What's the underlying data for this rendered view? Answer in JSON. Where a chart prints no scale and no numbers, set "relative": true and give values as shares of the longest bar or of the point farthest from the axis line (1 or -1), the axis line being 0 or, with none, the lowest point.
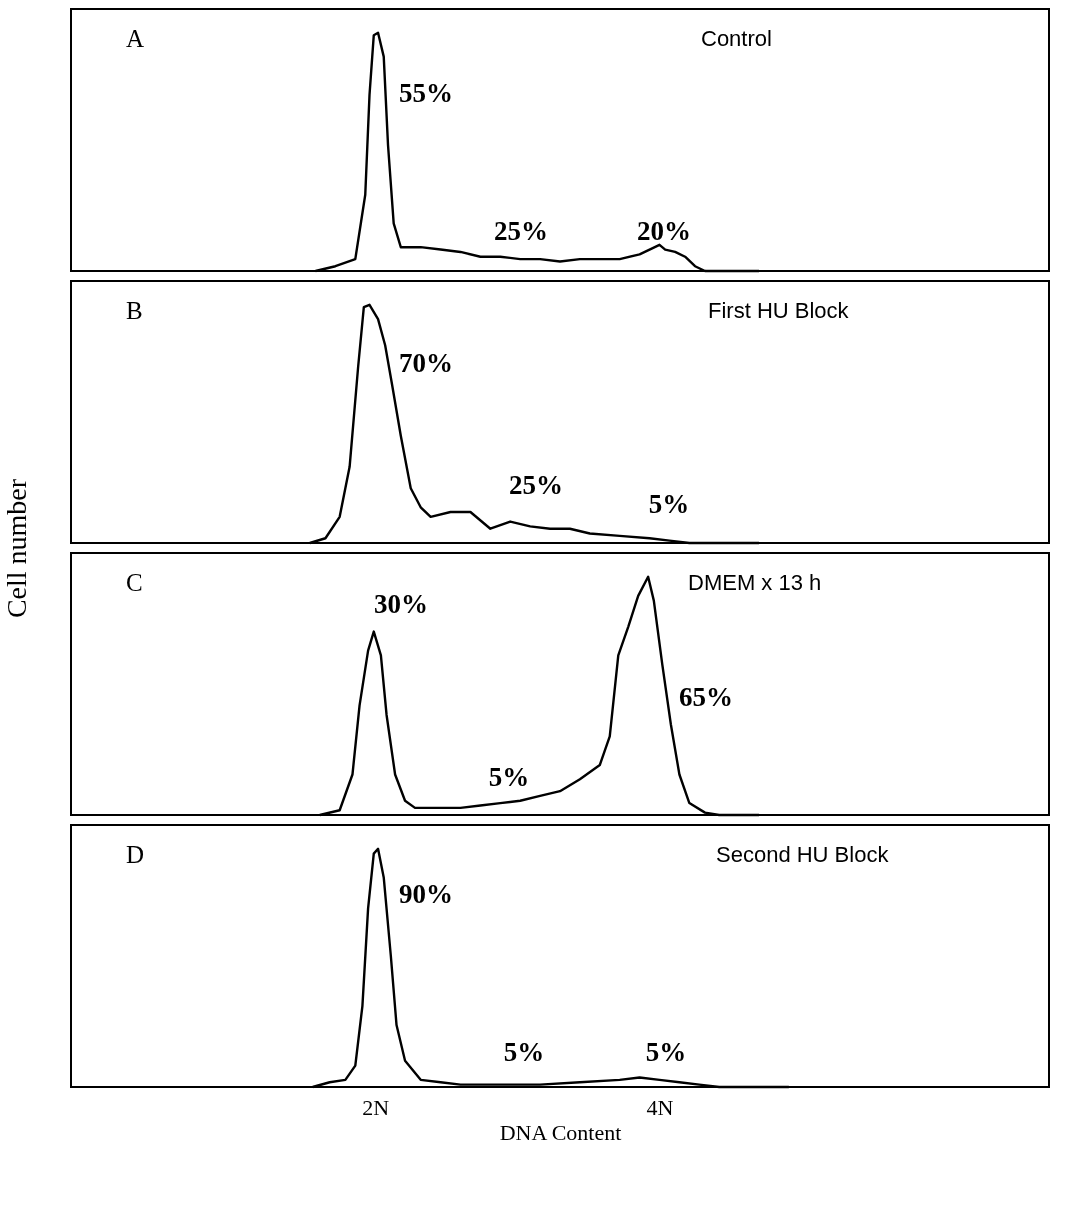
{
  "chart_data": [
    {
      "type": "line",
      "relative": true,
      "xlim": [
        -0.14,
        6.74
      ],
      "tick_labels": false,
      "grid": false,
      "x": [
        1.58,
        1.72,
        1.86,
        1.93,
        1.96,
        1.99,
        2.02,
        2.06,
        2.09,
        2.13,
        2.18,
        2.32,
        2.46,
        2.6,
        2.74,
        2.88,
        3.02,
        3.16,
        3.3,
        3.44,
        3.58,
        3.72,
        3.86,
        3.93,
        4.0,
        4.04,
        4.11,
        4.18,
        4.25,
        4.32,
        4.7
      ],
      "series": [
        {
          "color": "#000000",
          "values": [
            0,
            0.02,
            0.05,
            0.32,
            0.74,
            0.99,
            1,
            0.9,
            0.53,
            0.2,
            0.1,
            0.1,
            0.09,
            0.08,
            0.06,
            0.06,
            0.05,
            0.05,
            0.04,
            0.05,
            0.05,
            0.05,
            0.07,
            0.09,
            0.11,
            0.09,
            0.08,
            0.06,
            0.02,
            0,
            0
          ]
        }
      ],
      "annotations": [
        "A",
        "Control",
        "55%",
        "25%",
        "20%"
      ]
    },
    {
      "type": "line",
      "relative": true,
      "xlim": [
        -0.14,
        6.74
      ],
      "tick_labels": false,
      "grid": false,
      "ylabel": "Cell number",
      "x": [
        1.54,
        1.65,
        1.75,
        1.82,
        1.88,
        1.92,
        1.96,
        2.02,
        2.07,
        2.12,
        2.18,
        2.25,
        2.32,
        2.39,
        2.53,
        2.67,
        2.81,
        2.95,
        3.09,
        3.23,
        3.37,
        3.51,
        3.72,
        3.93,
        4.07,
        4.21,
        4.7
      ],
      "series": [
        {
          "color": "#000000",
          "values": [
            0,
            0.02,
            0.11,
            0.32,
            0.74,
            0.99,
            1,
            0.94,
            0.83,
            0.66,
            0.45,
            0.23,
            0.15,
            0.11,
            0.13,
            0.13,
            0.06,
            0.09,
            0.07,
            0.06,
            0.06,
            0.04,
            0.03,
            0.02,
            0.01,
            0,
            0
          ]
        }
      ],
      "annotations": [
        "B",
        "First HU Block",
        "70%",
        "25%",
        "5%"
      ]
    },
    {
      "type": "line",
      "relative": true,
      "xlim": [
        -0.14,
        6.74
      ],
      "tick_labels": false,
      "grid": false,
      "x": [
        1.61,
        1.75,
        1.84,
        1.89,
        1.95,
        1.99,
        2.04,
        2.08,
        2.14,
        2.21,
        2.28,
        2.46,
        2.6,
        2.74,
        2.88,
        3.02,
        3.16,
        3.3,
        3.44,
        3.58,
        3.65,
        3.71,
        3.78,
        3.85,
        3.92,
        3.96,
        4.02,
        4.08,
        4.14,
        4.21,
        4.32,
        4.42,
        4.7
      ],
      "series": [
        {
          "color": "#000000",
          "values": [
            0,
            0.02,
            0.17,
            0.46,
            0.69,
            0.77,
            0.67,
            0.42,
            0.17,
            0.06,
            0.03,
            0.03,
            0.03,
            0.04,
            0.05,
            0.06,
            0.08,
            0.1,
            0.15,
            0.21,
            0.33,
            0.67,
            0.79,
            0.92,
            1,
            0.9,
            0.63,
            0.38,
            0.17,
            0.05,
            0.01,
            0,
            0
          ]
        }
      ],
      "annotations": [
        "C",
        "DMEM  x 13 h",
        "30%",
        "5%",
        "65%"
      ]
    },
    {
      "type": "line",
      "relative": true,
      "xlim": [
        -0.14,
        6.74
      ],
      "xticks": [
        {
          "value": 2,
          "label": "2N"
        },
        {
          "value": 4,
          "label": "4N"
        }
      ],
      "tick_labels": "x",
      "grid": false,
      "xlabel": "DNA Content",
      "x": [
        1.56,
        1.68,
        1.79,
        1.86,
        1.91,
        1.95,
        1.99,
        2.02,
        2.06,
        2.11,
        2.15,
        2.21,
        2.32,
        2.46,
        2.6,
        2.88,
        3.16,
        3.44,
        3.72,
        3.86,
        4.0,
        4.14,
        4.28,
        4.42,
        4.91
      ],
      "series": [
        {
          "color": "#000000",
          "values": [
            0,
            0.02,
            0.03,
            0.09,
            0.34,
            0.75,
            0.98,
            1,
            0.88,
            0.55,
            0.26,
            0.11,
            0.03,
            0.02,
            0.01,
            0.01,
            0.01,
            0.02,
            0.03,
            0.04,
            0.03,
            0.02,
            0.01,
            0,
            0
          ]
        }
      ],
      "annotations": [
        "D",
        "Second HU Block",
        "90%",
        "5%",
        "5%"
      ]
    }
  ]
}
